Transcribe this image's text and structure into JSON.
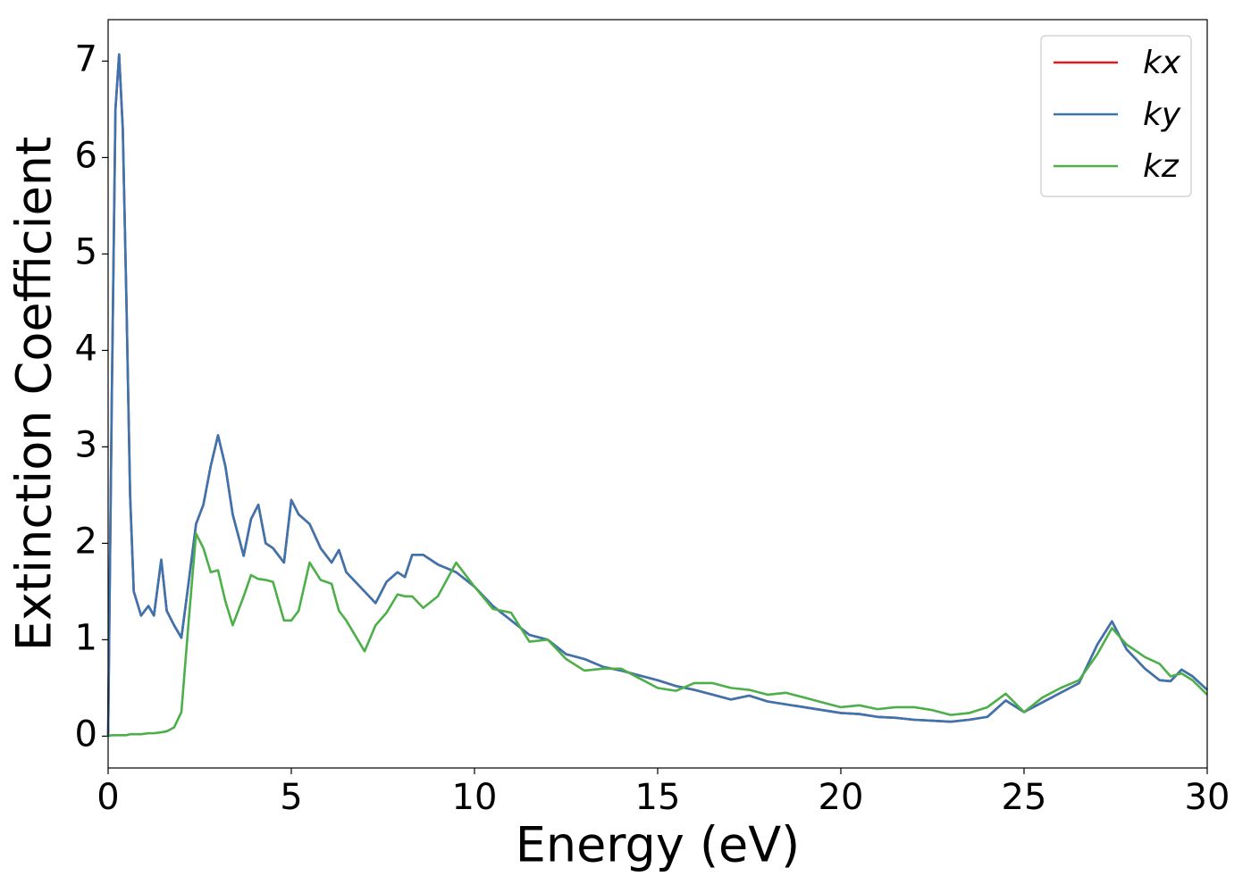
{
  "chart_data": {
    "type": "line",
    "xlabel": "Energy (eV)",
    "ylabel": "Extinction Coefficient",
    "x": [
      0,
      0.1,
      0.2,
      0.3,
      0.4,
      0.5,
      0.6,
      0.7,
      0.9,
      1.1,
      1.25,
      1.45,
      1.6,
      1.8,
      2.0,
      2.2,
      2.4,
      2.6,
      2.8,
      3.0,
      3.2,
      3.4,
      3.7,
      3.9,
      4.1,
      4.3,
      4.5,
      4.8,
      5.0,
      5.2,
      5.5,
      5.8,
      6.1,
      6.3,
      6.5,
      7.0,
      7.3,
      7.6,
      7.9,
      8.1,
      8.3,
      8.6,
      9.0,
      9.5,
      10.0,
      10.5,
      11,
      11.5,
      12,
      12.5,
      13,
      13.5,
      14,
      14.5,
      15,
      15.5,
      16,
      16.5,
      17,
      17.5,
      18,
      18.5,
      19,
      19.5,
      20,
      20.5,
      21,
      21.5,
      22,
      22.5,
      23,
      23.5,
      24,
      24.5,
      25,
      25.5,
      26,
      26.5,
      27,
      27.4,
      27.8,
      28.3,
      28.7,
      29,
      29.3,
      29.6,
      30
    ],
    "series": [
      {
        "name": "kx",
        "color": "#e41a1c",
        "values": [
          0,
          3.5,
          6.5,
          7.07,
          6.3,
          4.5,
          2.5,
          1.5,
          1.25,
          1.35,
          1.25,
          1.83,
          1.3,
          1.15,
          1.02,
          1.6,
          2.2,
          2.4,
          2.8,
          3.12,
          2.8,
          2.3,
          1.87,
          2.25,
          2.4,
          2.0,
          1.95,
          1.8,
          2.45,
          2.3,
          2.2,
          1.95,
          1.8,
          1.93,
          1.7,
          1.5,
          1.38,
          1.6,
          1.7,
          1.65,
          1.88,
          1.88,
          1.78,
          1.7,
          1.55,
          1.35,
          1.2,
          1.05,
          1.0,
          0.85,
          0.8,
          0.72,
          0.68,
          0.63,
          0.58,
          0.52,
          0.48,
          0.43,
          0.38,
          0.42,
          0.36,
          0.33,
          0.3,
          0.27,
          0.24,
          0.23,
          0.2,
          0.19,
          0.17,
          0.16,
          0.15,
          0.17,
          0.2,
          0.37,
          0.25,
          0.35,
          0.45,
          0.55,
          0.95,
          1.19,
          0.9,
          0.7,
          0.58,
          0.57,
          0.69,
          0.62,
          0.48
        ]
      },
      {
        "name": "ky",
        "color": "#3b75af",
        "values": [
          0,
          3.5,
          6.5,
          7.07,
          6.3,
          4.5,
          2.5,
          1.5,
          1.25,
          1.35,
          1.25,
          1.83,
          1.3,
          1.15,
          1.02,
          1.6,
          2.2,
          2.4,
          2.8,
          3.12,
          2.8,
          2.3,
          1.87,
          2.25,
          2.4,
          2.0,
          1.95,
          1.8,
          2.45,
          2.3,
          2.2,
          1.95,
          1.8,
          1.93,
          1.7,
          1.5,
          1.38,
          1.6,
          1.7,
          1.65,
          1.88,
          1.88,
          1.78,
          1.7,
          1.55,
          1.35,
          1.2,
          1.05,
          1.0,
          0.85,
          0.8,
          0.72,
          0.68,
          0.63,
          0.58,
          0.52,
          0.48,
          0.43,
          0.38,
          0.42,
          0.36,
          0.33,
          0.3,
          0.27,
          0.24,
          0.23,
          0.2,
          0.19,
          0.17,
          0.16,
          0.15,
          0.17,
          0.2,
          0.37,
          0.25,
          0.35,
          0.45,
          0.55,
          0.95,
          1.19,
          0.9,
          0.7,
          0.58,
          0.57,
          0.69,
          0.62,
          0.48
        ]
      },
      {
        "name": "kz",
        "color": "#4daf4a",
        "values": [
          0,
          0.01,
          0.01,
          0.01,
          0.01,
          0.01,
          0.02,
          0.02,
          0.02,
          0.03,
          0.03,
          0.04,
          0.05,
          0.09,
          0.25,
          1.2,
          2.1,
          1.95,
          1.7,
          1.72,
          1.4,
          1.15,
          1.45,
          1.67,
          1.63,
          1.62,
          1.6,
          1.2,
          1.2,
          1.3,
          1.8,
          1.62,
          1.58,
          1.3,
          1.2,
          0.88,
          1.15,
          1.28,
          1.47,
          1.45,
          1.45,
          1.33,
          1.45,
          1.8,
          1.55,
          1.32,
          1.28,
          0.98,
          1.0,
          0.8,
          0.68,
          0.7,
          0.7,
          0.6,
          0.5,
          0.47,
          0.55,
          0.55,
          0.5,
          0.48,
          0.43,
          0.45,
          0.4,
          0.35,
          0.3,
          0.32,
          0.28,
          0.3,
          0.3,
          0.27,
          0.22,
          0.24,
          0.3,
          0.44,
          0.25,
          0.4,
          0.5,
          0.58,
          0.85,
          1.12,
          0.95,
          0.82,
          0.75,
          0.62,
          0.65,
          0.58,
          0.43
        ]
      }
    ],
    "xlim": [
      0,
      30
    ],
    "ylim": [
      -0.33,
      7.43
    ],
    "xticks": [
      0,
      5,
      10,
      15,
      20,
      25,
      30
    ],
    "yticks": [
      0,
      1,
      2,
      3,
      4,
      5,
      6,
      7
    ],
    "legend": "upper right"
  }
}
